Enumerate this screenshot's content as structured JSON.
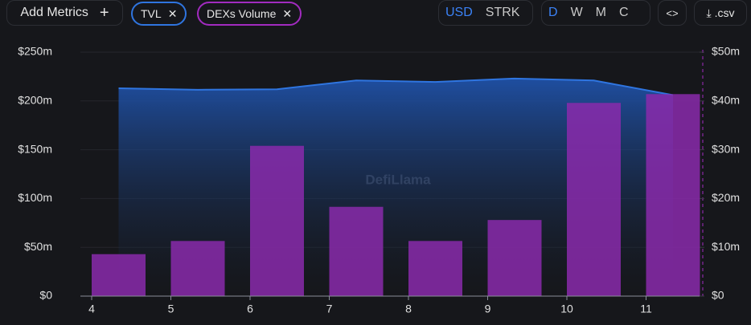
{
  "toolbar": {
    "add_metrics": "Add Metrics",
    "chips": [
      "TVL",
      "DEXs Volume"
    ],
    "currencies": [
      "USD",
      "STRK"
    ],
    "periods": [
      "D",
      "W",
      "M",
      "C"
    ],
    "csv": ".csv"
  },
  "chart_data": {
    "type": "bar-line",
    "watermark": "DefiLlama",
    "categories": [
      "4",
      "5",
      "6",
      "7",
      "8",
      "9",
      "10",
      "11"
    ],
    "series": [
      {
        "name": "TVL",
        "type": "line",
        "color": "#2f75e0",
        "values": [
          213,
          211.5,
          212,
          221,
          219.5,
          223,
          221,
          206
        ]
      },
      {
        "name": "DEXs Volume",
        "type": "bar",
        "axis": "y2",
        "color": "#8a2aac",
        "values": [
          8.6,
          11.3,
          30.8,
          18.3,
          11.3,
          15.6,
          39.6,
          41.4
        ]
      }
    ],
    "ylim": [
      0,
      250
    ],
    "yticks": [
      {
        "value": 0,
        "label": "$0"
      },
      {
        "value": 50,
        "label": "$50m"
      },
      {
        "value": 100,
        "label": "$100m"
      },
      {
        "value": 150,
        "label": "$150m"
      },
      {
        "value": 200,
        "label": "$200m"
      },
      {
        "value": 250,
        "label": "$250m"
      }
    ],
    "y2lim": [
      0,
      50
    ],
    "y2ticks": [
      {
        "value": 0,
        "label": "$0"
      },
      {
        "value": 10,
        "label": "$10m"
      },
      {
        "value": 20,
        "label": "$20m"
      },
      {
        "value": 30,
        "label": "$30m"
      },
      {
        "value": 40,
        "label": "$40m"
      },
      {
        "value": 50,
        "label": "$50m"
      }
    ],
    "grid": true
  }
}
